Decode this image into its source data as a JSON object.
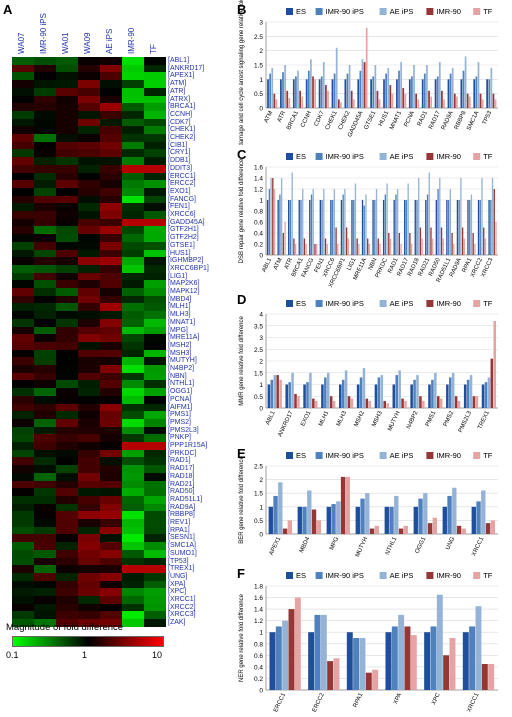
{
  "panel_labels": {
    "a": "A",
    "b": "B",
    "c": "C",
    "d": "D",
    "e": "E",
    "f": "F"
  },
  "heatmap": {
    "columns": [
      "WA07",
      "IMR-90 iPS",
      "WA01",
      "WA09",
      "AE iPS",
      "IMR-90",
      "TF"
    ],
    "genes": [
      "ABL1",
      "ANKRD17",
      "APEX1",
      "ATM",
      "ATR",
      "ATRX",
      "BRCA1",
      "CCNH",
      "CDK7",
      "CHEK1",
      "CHEK2",
      "CIB1",
      "CRY1",
      "DDB1",
      "DDIT3",
      "ERCC1",
      "ERCC2",
      "EXO1",
      "FANCG",
      "FEN1",
      "XRCC6",
      "GADD45A",
      "GTF2H1",
      "GTF2H2",
      "GTSE1",
      "HUS1",
      "IGHMBP2",
      "XRCC6BP1",
      "LIG1",
      "MAP2K6",
      "MAPK12",
      "MBD4",
      "MLH1",
      "MLH3",
      "MNAT1",
      "MPG",
      "MRE11A",
      "MSH2",
      "MSH3",
      "MUTYH",
      "N4BP2",
      "NBN",
      "NTHL1",
      "OGG1",
      "PCNA",
      "AIFM1",
      "PMS1",
      "PMS2",
      "PMS2L3",
      "PNKP",
      "PPP1R15A",
      "PRKDC",
      "RAD1",
      "RAD17",
      "RAD18",
      "RAD21",
      "RAD50",
      "RAD51L1",
      "RAD9A",
      "RBBP8",
      "REV1",
      "RPA1",
      "SESN1",
      "SMC1A",
      "SUMO1",
      "TP53",
      "TREX1",
      "UNG",
      "XPA",
      "XPC",
      "XRCC1",
      "XRCC2",
      "XRCC3",
      "ZAK"
    ],
    "legend_title": "Magnitude of fold difference",
    "scale_min_label": "0.1",
    "scale_mid_label": "1",
    "scale_max_label": "10",
    "colors": {
      "low": "#00ff00",
      "mid": "#000000",
      "high": "#ff0000"
    }
  },
  "chart_data": [
    {
      "panel": "B",
      "type": "bar",
      "ylabel": "DNA damage and cell cycle arrest signaling gene relative fold difference",
      "ylim": [
        0,
        3
      ],
      "yticks": [
        "0",
        "0.5",
        "1",
        "1.5",
        "2",
        "2.5",
        "3"
      ],
      "categories": [
        "ATM",
        "ATR",
        "BRCA1",
        "CCNH",
        "CDK7",
        "CHEK1",
        "CHEK2",
        "GADD45A",
        "GTSE1",
        "HUS1",
        "MNAT1",
        "PCNA",
        "RAD1",
        "RAD17",
        "RAD9A",
        "RBBP8",
        "SMC1A",
        "TP53"
      ],
      "series": [
        {
          "name": "ES",
          "color": "#1f4e9c",
          "values": [
            1,
            1,
            1,
            1,
            1,
            1,
            1,
            1,
            1,
            1,
            1,
            1,
            1,
            1,
            1,
            1,
            1,
            1
          ]
        },
        {
          "name": "IMR-90 iPS",
          "color": "#4f81bd",
          "values": [
            1.2,
            1.25,
            1.1,
            1.3,
            1.1,
            1.2,
            1.2,
            1.3,
            1.1,
            1.2,
            1.3,
            1.1,
            1.2,
            1.1,
            1.2,
            1.3,
            1.1,
            1.0
          ]
        },
        {
          "name": "AE iPS",
          "color": "#95b3d7",
          "values": [
            1.4,
            1.5,
            1.3,
            1.7,
            1.6,
            2.1,
            1.5,
            1.7,
            1.5,
            1.4,
            1.6,
            1.5,
            1.5,
            1.6,
            1.4,
            1.8,
            1.6,
            1.4
          ]
        },
        {
          "name": "IMR-90",
          "color": "#953735",
          "values": [
            0.5,
            0.6,
            0.6,
            1.1,
            0.8,
            0.3,
            0.6,
            1.6,
            0.6,
            0.8,
            0.7,
            0.5,
            0.6,
            0.6,
            0.5,
            0.5,
            0.5,
            0.5
          ]
        },
        {
          "name": "TF",
          "color": "#e6a3a3",
          "values": [
            0.3,
            0.35,
            0.4,
            1.0,
            0.6,
            0.2,
            0.3,
            2.8,
            0.3,
            0.5,
            0.5,
            0.3,
            0.4,
            0.3,
            0.4,
            0.4,
            0.3,
            0.3
          ]
        }
      ]
    },
    {
      "panel": "C",
      "type": "bar",
      "ylabel": "DSB repair gene relative fold difference",
      "ylim": [
        0,
        1.6
      ],
      "yticks": [
        "0",
        "0.2",
        "0.4",
        "0.6",
        "0.8",
        "1",
        "1.2",
        "1.4",
        "1.6"
      ],
      "categories": [
        "ABL1",
        "ATM",
        "ATR",
        "BRCA1",
        "FANCG",
        "FEN1",
        "XRCC6",
        "XRCC6BP1",
        "LIG1",
        "MRE11A",
        "NBN",
        "PRKDC",
        "RAD1",
        "RAD17",
        "RAD18",
        "RAD21",
        "RAD50",
        "RAD51L1",
        "RAD9A",
        "RPA1",
        "XRCC2",
        "XRCC3"
      ],
      "series": [
        {
          "name": "ES",
          "color": "#1f4e9c",
          "values": [
            1,
            1,
            1,
            1,
            1,
            1,
            1,
            1,
            1,
            1,
            1,
            1,
            1,
            1,
            1,
            1,
            1,
            1,
            1,
            1,
            1,
            1
          ]
        },
        {
          "name": "IMR-90 iPS",
          "color": "#4f81bd",
          "values": [
            1.2,
            1.1,
            1.0,
            1.0,
            1.1,
            1.0,
            1.0,
            1.1,
            1.0,
            0.9,
            1.0,
            1.1,
            1.1,
            1.0,
            1.0,
            1.1,
            1.2,
            1.0,
            1.0,
            1.0,
            1.0,
            1.0
          ]
        },
        {
          "name": "AE iPS",
          "color": "#95b3d7",
          "values": [
            1.4,
            1.4,
            1.5,
            1.2,
            1.2,
            1.2,
            1.2,
            1.2,
            1.3,
            1.1,
            1.2,
            1.3,
            1.2,
            1.3,
            1.4,
            1.5,
            1.4,
            1.2,
            1.4,
            1.1,
            1.4,
            1.4
          ]
        },
        {
          "name": "IMR-90",
          "color": "#953735",
          "values": [
            1.4,
            0.4,
            0.3,
            0.3,
            0.2,
            0.3,
            0.5,
            0.5,
            0.3,
            0.3,
            0.3,
            0.4,
            0.4,
            0.4,
            0.5,
            0.5,
            0.5,
            0.4,
            0.5,
            0.4,
            0.5,
            1.2
          ]
        },
        {
          "name": "TF",
          "color": "#e6a3a3",
          "values": [
            1.2,
            0.6,
            0.2,
            0.2,
            0.2,
            0.2,
            0.2,
            0.3,
            0.2,
            0.2,
            0.2,
            0.3,
            0.2,
            0.2,
            0.3,
            0.3,
            0.3,
            0.2,
            0.3,
            0.2,
            0.3,
            0.6
          ]
        }
      ]
    },
    {
      "panel": "D",
      "type": "bar",
      "ylabel": "MMR gene relative fold difference",
      "ylim": [
        0,
        4
      ],
      "yticks": [
        "0",
        "0.5",
        "1",
        "1.5",
        "2",
        "2.5",
        "3",
        "3.5",
        "4"
      ],
      "categories": [
        "ABL1",
        "ANKRD17",
        "EXO1",
        "MLH1",
        "MLH3",
        "MSH2",
        "MSH3",
        "MUTYH",
        "N4BP2",
        "PMS1",
        "PMS2",
        "PMS2L3",
        "TREX1"
      ],
      "series": [
        {
          "name": "ES",
          "color": "#1f4e9c",
          "values": [
            1,
            1,
            1,
            1,
            1,
            1,
            1,
            1,
            1,
            1,
            1,
            1,
            1
          ]
        },
        {
          "name": "IMR-90 iPS",
          "color": "#4f81bd",
          "values": [
            1.2,
            1.1,
            1.1,
            1.3,
            1.2,
            1.3,
            1.3,
            1.4,
            1.2,
            1.2,
            1.3,
            1.2,
            1.1
          ]
        },
        {
          "name": "AE iPS",
          "color": "#95b3d7",
          "values": [
            1.4,
            1.5,
            1.5,
            1.5,
            1.6,
            1.7,
            1.4,
            1.6,
            1.4,
            1.5,
            1.5,
            1.4,
            1.3
          ]
        },
        {
          "name": "IMR-90",
          "color": "#953735",
          "values": [
            1.4,
            0.6,
            0.4,
            0.5,
            0.5,
            0.4,
            0.3,
            0.4,
            0.5,
            0.5,
            0.5,
            0.5,
            2.1
          ]
        },
        {
          "name": "TF",
          "color": "#e6a3a3",
          "values": [
            1.2,
            0.5,
            0.3,
            0.3,
            0.4,
            0.3,
            0.2,
            0.3,
            0.3,
            0.4,
            0.3,
            0.5,
            3.7
          ]
        }
      ]
    },
    {
      "panel": "E",
      "type": "bar",
      "ylabel": "BER gene relative fold difference",
      "ylim": [
        0,
        2.5
      ],
      "yticks": [
        "0",
        "0.5",
        "1",
        "1.5",
        "2",
        "2.5"
      ],
      "categories": [
        "APEX1",
        "MBD4",
        "MPG",
        "MUTYH",
        "NTHL1",
        "OGG1",
        "UNG",
        "XRCC1"
      ],
      "series": [
        {
          "name": "ES",
          "color": "#1f4e9c",
          "values": [
            1,
            1,
            1,
            1,
            1,
            1,
            1,
            1
          ]
        },
        {
          "name": "IMR-90 iPS",
          "color": "#4f81bd",
          "values": [
            1.4,
            1.0,
            1.1,
            1.3,
            1.0,
            1.3,
            1.4,
            1.2
          ]
        },
        {
          "name": "AE iPS",
          "color": "#95b3d7",
          "values": [
            1.9,
            1.6,
            1.2,
            1.5,
            1.4,
            1.5,
            1.7,
            1.6
          ]
        },
        {
          "name": "IMR-90",
          "color": "#953735",
          "values": [
            0.2,
            0.9,
            2.1,
            0.2,
            0.2,
            0.4,
            0.3,
            0.4
          ]
        },
        {
          "name": "TF",
          "color": "#e6a3a3",
          "values": [
            0.5,
            0.5,
            2.1,
            0.3,
            0.3,
            0.6,
            0.2,
            0.5
          ]
        }
      ]
    },
    {
      "panel": "F",
      "type": "bar",
      "ylabel": "NER gene relative fold difference",
      "ylim": [
        0,
        1.8
      ],
      "yticks": [
        "0",
        "0.2",
        "0.4",
        "0.6",
        "0.8",
        "1",
        "1.2",
        "1.4",
        "1.6",
        "1.8"
      ],
      "categories": [
        "ERCC1",
        "ERCC2",
        "RPA1",
        "XPA",
        "XPC",
        "XRCC1"
      ],
      "series": [
        {
          "name": "ES",
          "color": "#1f4e9c",
          "values": [
            1,
            1,
            1,
            1,
            1,
            1
          ]
        },
        {
          "name": "IMR-90 iPS",
          "color": "#4f81bd",
          "values": [
            1.1,
            1.3,
            0.9,
            1.1,
            1.1,
            1.1
          ]
        },
        {
          "name": "AE iPS",
          "color": "#95b3d7",
          "values": [
            1.2,
            1.3,
            0.9,
            1.3,
            1.65,
            1.45
          ]
        },
        {
          "name": "IMR-90",
          "color": "#953735",
          "values": [
            1.4,
            0.5,
            0.3,
            1.1,
            0.6,
            0.45
          ]
        },
        {
          "name": "TF",
          "color": "#e6a3a3",
          "values": [
            1.6,
            0.55,
            0.35,
            0.95,
            0.9,
            0.45
          ]
        }
      ]
    }
  ]
}
